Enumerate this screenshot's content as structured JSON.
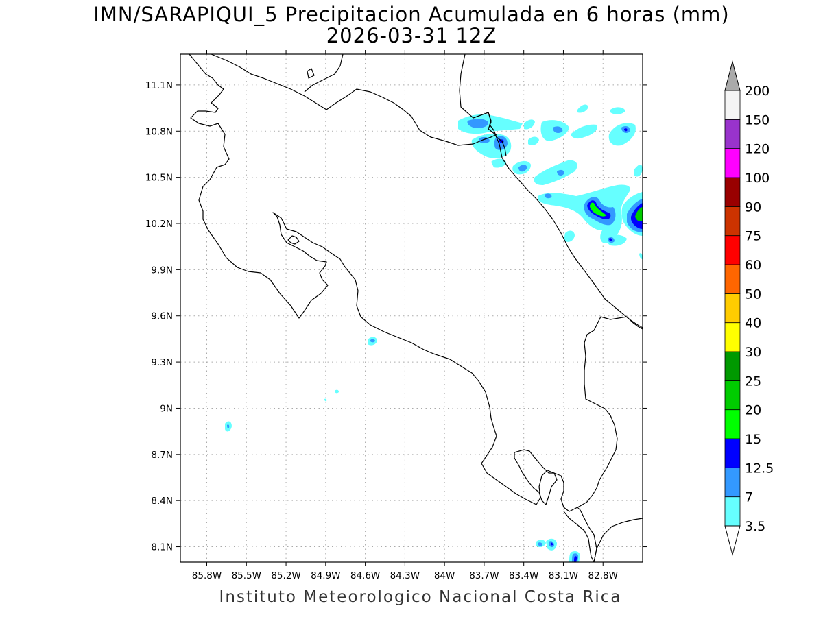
{
  "title": {
    "line1": "IMN/SARAPIQUI_5 Precipitacion Acumulada en 6 horas (mm)",
    "line2": "2026-03-31 12Z"
  },
  "footer": "Instituto Meteorologico Nacional Costa Rica",
  "map": {
    "lon_range": [
      -86.0,
      -82.5
    ],
    "lat_range": [
      8.0,
      11.3
    ],
    "lon_ticks": [
      {
        "value": -85.8,
        "label": "85.8W"
      },
      {
        "value": -85.5,
        "label": "85.5W"
      },
      {
        "value": -85.2,
        "label": "85.2W"
      },
      {
        "value": -84.9,
        "label": "84.9W"
      },
      {
        "value": -84.6,
        "label": "84.6W"
      },
      {
        "value": -84.3,
        "label": "84.3W"
      },
      {
        "value": -84.0,
        "label": "84W"
      },
      {
        "value": -83.7,
        "label": "83.7W"
      },
      {
        "value": -83.4,
        "label": "83.4W"
      },
      {
        "value": -83.1,
        "label": "83.1W"
      },
      {
        "value": -82.8,
        "label": "82.8W"
      }
    ],
    "lat_ticks": [
      {
        "value": 11.1,
        "label": "11.1N"
      },
      {
        "value": 10.8,
        "label": "10.8N"
      },
      {
        "value": 10.5,
        "label": "10.5N"
      },
      {
        "value": 10.2,
        "label": "10.2N"
      },
      {
        "value": 9.9,
        "label": "9.9N"
      },
      {
        "value": 9.6,
        "label": "9.6N"
      },
      {
        "value": 9.3,
        "label": "9.3N"
      },
      {
        "value": 9.0,
        "label": "9N"
      },
      {
        "value": 8.7,
        "label": "8.7N"
      },
      {
        "value": 8.4,
        "label": "8.4N"
      },
      {
        "value": 8.1,
        "label": "8.1N"
      }
    ],
    "grid": true
  },
  "colorbar": {
    "levels": [
      "3.5",
      "7",
      "12.5",
      "15",
      "20",
      "25",
      "30",
      "40",
      "50",
      "60",
      "75",
      "90",
      "100",
      "120",
      "150",
      "200"
    ],
    "colors": [
      "#66ffff",
      "#3399ff",
      "#0000ff",
      "#00ff00",
      "#00cc00",
      "#009900",
      "#ffff00",
      "#ffcc00",
      "#ff6600",
      "#ff0000",
      "#cc3300",
      "#990000",
      "#ff00ff",
      "#9933cc",
      "#f5f5f5"
    ],
    "under_color": "#ffffff",
    "over_color": "#aaaaaa"
  }
}
